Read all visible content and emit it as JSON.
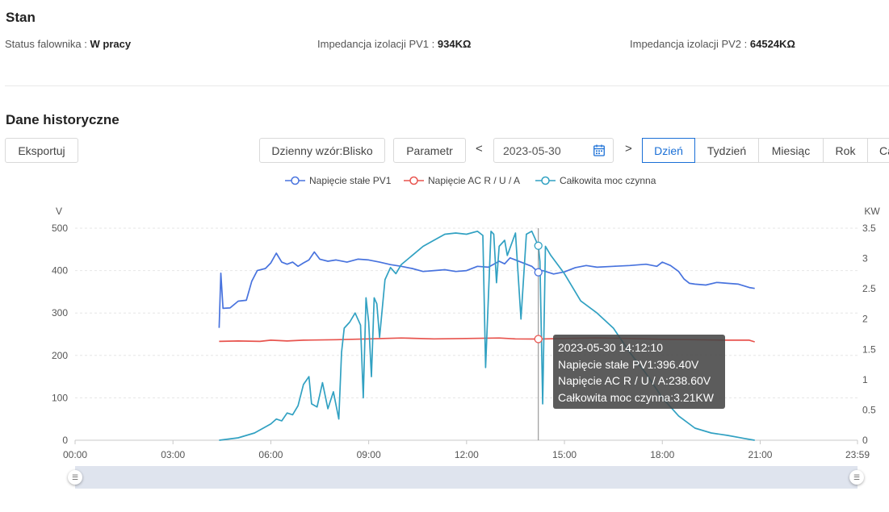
{
  "status": {
    "title": "Stan",
    "inverter_label": "Status falownika",
    "inverter_value": "W pracy",
    "pv1_label": "Impedancja izolacji PV1",
    "pv1_value": "934KΩ",
    "pv2_label": "Impedancja izolacji PV2",
    "pv2_value": "64524KΩ",
    "separator": ":"
  },
  "history": {
    "title": "Dane historyczne",
    "export_label": "Eksportuj",
    "pattern_label": "Dzienny wzór:Blisko",
    "param_label": "Parametr",
    "prev_arrow": "<",
    "next_arrow": ">",
    "date_value": "2023-05-30",
    "tabs": [
      "Dzień",
      "Tydzień",
      "Miesiąc",
      "Rok",
      "Ca"
    ],
    "active_tab": "Dzień"
  },
  "colors": {
    "pv1": "#4873de",
    "ac": "#e8544e",
    "power": "#31a1c2",
    "active_tab": "#1a6fd6"
  },
  "icons": {
    "calendar": "calendar-icon",
    "handle": "slider-handle-icon"
  },
  "tooltip": {
    "time": "2023-05-30 14:12:10",
    "line1": "Napięcie stałe PV1:396.40V",
    "line2": "Napięcie AC R / U / A:238.60V",
    "line3": "Całkowita moc czynna:3.21KW"
  },
  "chart_data": {
    "type": "line",
    "left_axis_unit": "V",
    "right_axis_unit": "KW",
    "ylim_left": [
      0,
      500
    ],
    "ylim_right": [
      0,
      3.5
    ],
    "yticks_left": [
      "500",
      "400",
      "300",
      "200",
      "100",
      "0"
    ],
    "yticks_right": [
      "3.5",
      "3",
      "2.5",
      "2",
      "1.5",
      "1",
      "0.5",
      "0"
    ],
    "xticks": [
      "00:00",
      "03:00",
      "06:00",
      "09:00",
      "12:00",
      "15:00",
      "18:00",
      "21:00",
      "23:59"
    ],
    "cursor_time": "14:12",
    "series": [
      {
        "name": "Napięcie stałe PV1",
        "axis": "left",
        "points": [
          [
            "04:25",
            265
          ],
          [
            "04:28",
            394
          ],
          [
            "04:32",
            311
          ],
          [
            "04:45",
            312
          ],
          [
            "05:00",
            328
          ],
          [
            "05:15",
            330
          ],
          [
            "05:25",
            375
          ],
          [
            "05:35",
            400
          ],
          [
            "05:50",
            405
          ],
          [
            "06:00",
            418
          ],
          [
            "06:10",
            441
          ],
          [
            "06:20",
            420
          ],
          [
            "06:30",
            415
          ],
          [
            "06:40",
            420
          ],
          [
            "06:50",
            410
          ],
          [
            "07:00",
            418
          ],
          [
            "07:10",
            425
          ],
          [
            "07:20",
            444
          ],
          [
            "07:30",
            427
          ],
          [
            "07:45",
            422
          ],
          [
            "08:00",
            425
          ],
          [
            "08:20",
            420
          ],
          [
            "08:40",
            427
          ],
          [
            "09:00",
            425
          ],
          [
            "09:20",
            420
          ],
          [
            "09:40",
            414
          ],
          [
            "10:00",
            410
          ],
          [
            "10:20",
            405
          ],
          [
            "10:40",
            398
          ],
          [
            "11:00",
            400
          ],
          [
            "11:20",
            402
          ],
          [
            "11:40",
            398
          ],
          [
            "12:00",
            400
          ],
          [
            "12:20",
            410
          ],
          [
            "12:40",
            408
          ],
          [
            "13:00",
            422
          ],
          [
            "13:10",
            416
          ],
          [
            "13:20",
            430
          ],
          [
            "13:40",
            420
          ],
          [
            "14:00",
            410
          ],
          [
            "14:12",
            396
          ],
          [
            "14:20",
            400
          ],
          [
            "14:40",
            392
          ],
          [
            "15:00",
            397
          ],
          [
            "15:20",
            407
          ],
          [
            "15:40",
            412
          ],
          [
            "16:00",
            408
          ],
          [
            "16:30",
            410
          ],
          [
            "17:00",
            412
          ],
          [
            "17:30",
            415
          ],
          [
            "17:50",
            410
          ],
          [
            "18:00",
            420
          ],
          [
            "18:15",
            412
          ],
          [
            "18:30",
            398
          ],
          [
            "18:40",
            380
          ],
          [
            "18:50",
            370
          ],
          [
            "19:00",
            368
          ],
          [
            "19:20",
            366
          ],
          [
            "19:40",
            372
          ],
          [
            "20:00",
            370
          ],
          [
            "20:20",
            368
          ],
          [
            "20:40",
            360
          ],
          [
            "20:50",
            358
          ]
        ]
      },
      {
        "name": "Napięcie AC R / U / A",
        "axis": "left",
        "points": [
          [
            "04:25",
            233
          ],
          [
            "05:00",
            234
          ],
          [
            "05:40",
            233
          ],
          [
            "06:00",
            236
          ],
          [
            "06:30",
            234
          ],
          [
            "07:00",
            236
          ],
          [
            "08:00",
            237
          ],
          [
            "09:00",
            239
          ],
          [
            "10:00",
            241
          ],
          [
            "11:00",
            239
          ],
          [
            "12:00",
            240
          ],
          [
            "13:00",
            241
          ],
          [
            "13:30",
            239
          ],
          [
            "14:12",
            238.6
          ],
          [
            "15:00",
            240
          ],
          [
            "16:00",
            241
          ],
          [
            "17:00",
            240
          ],
          [
            "18:00",
            238
          ],
          [
            "19:00",
            237
          ],
          [
            "20:00",
            236
          ],
          [
            "20:40",
            236
          ],
          [
            "20:50",
            232
          ]
        ]
      },
      {
        "name": "Całkowita moc czynna",
        "axis": "right",
        "points": [
          [
            "04:25",
            0.0
          ],
          [
            "05:00",
            0.04
          ],
          [
            "05:30",
            0.12
          ],
          [
            "05:50",
            0.22
          ],
          [
            "06:00",
            0.27
          ],
          [
            "06:10",
            0.35
          ],
          [
            "06:20",
            0.32
          ],
          [
            "06:30",
            0.45
          ],
          [
            "06:40",
            0.42
          ],
          [
            "06:50",
            0.57
          ],
          [
            "07:00",
            0.92
          ],
          [
            "07:10",
            1.05
          ],
          [
            "07:15",
            0.6
          ],
          [
            "07:25",
            0.55
          ],
          [
            "07:35",
            0.95
          ],
          [
            "07:45",
            0.52
          ],
          [
            "07:55",
            0.8
          ],
          [
            "08:05",
            0.35
          ],
          [
            "08:10",
            1.45
          ],
          [
            "08:15",
            1.85
          ],
          [
            "08:25",
            1.95
          ],
          [
            "08:35",
            2.1
          ],
          [
            "08:45",
            1.9
          ],
          [
            "08:50",
            0.7
          ],
          [
            "08:55",
            2.35
          ],
          [
            "09:00",
            1.95
          ],
          [
            "09:05",
            1.05
          ],
          [
            "09:10",
            2.35
          ],
          [
            "09:15",
            2.25
          ],
          [
            "09:20",
            1.7
          ],
          [
            "09:30",
            2.65
          ],
          [
            "09:40",
            2.85
          ],
          [
            "09:50",
            2.75
          ],
          [
            "10:00",
            2.9
          ],
          [
            "10:20",
            3.05
          ],
          [
            "10:40",
            3.2
          ],
          [
            "11:00",
            3.3
          ],
          [
            "11:20",
            3.4
          ],
          [
            "11:40",
            3.42
          ],
          [
            "12:00",
            3.4
          ],
          [
            "12:20",
            3.45
          ],
          [
            "12:30",
            3.38
          ],
          [
            "12:35",
            1.2
          ],
          [
            "12:45",
            3.45
          ],
          [
            "12:50",
            3.4
          ],
          [
            "12:55",
            2.6
          ],
          [
            "13:00",
            3.2
          ],
          [
            "13:10",
            3.3
          ],
          [
            "13:15",
            3.05
          ],
          [
            "13:30",
            3.42
          ],
          [
            "13:40",
            2.0
          ],
          [
            "13:50",
            3.4
          ],
          [
            "14:00",
            3.45
          ],
          [
            "14:12",
            3.21
          ],
          [
            "14:15",
            2.95
          ],
          [
            "14:20",
            0.6
          ],
          [
            "14:25",
            3.2
          ],
          [
            "14:35",
            3.05
          ],
          [
            "15:00",
            2.75
          ],
          [
            "15:30",
            2.3
          ],
          [
            "16:00",
            2.1
          ],
          [
            "16:30",
            1.85
          ],
          [
            "17:00",
            1.45
          ],
          [
            "17:30",
            1.1
          ],
          [
            "18:00",
            0.7
          ],
          [
            "18:30",
            0.4
          ],
          [
            "19:00",
            0.2
          ],
          [
            "19:30",
            0.12
          ],
          [
            "20:00",
            0.08
          ],
          [
            "20:30",
            0.03
          ],
          [
            "20:50",
            0.0
          ]
        ]
      }
    ]
  }
}
